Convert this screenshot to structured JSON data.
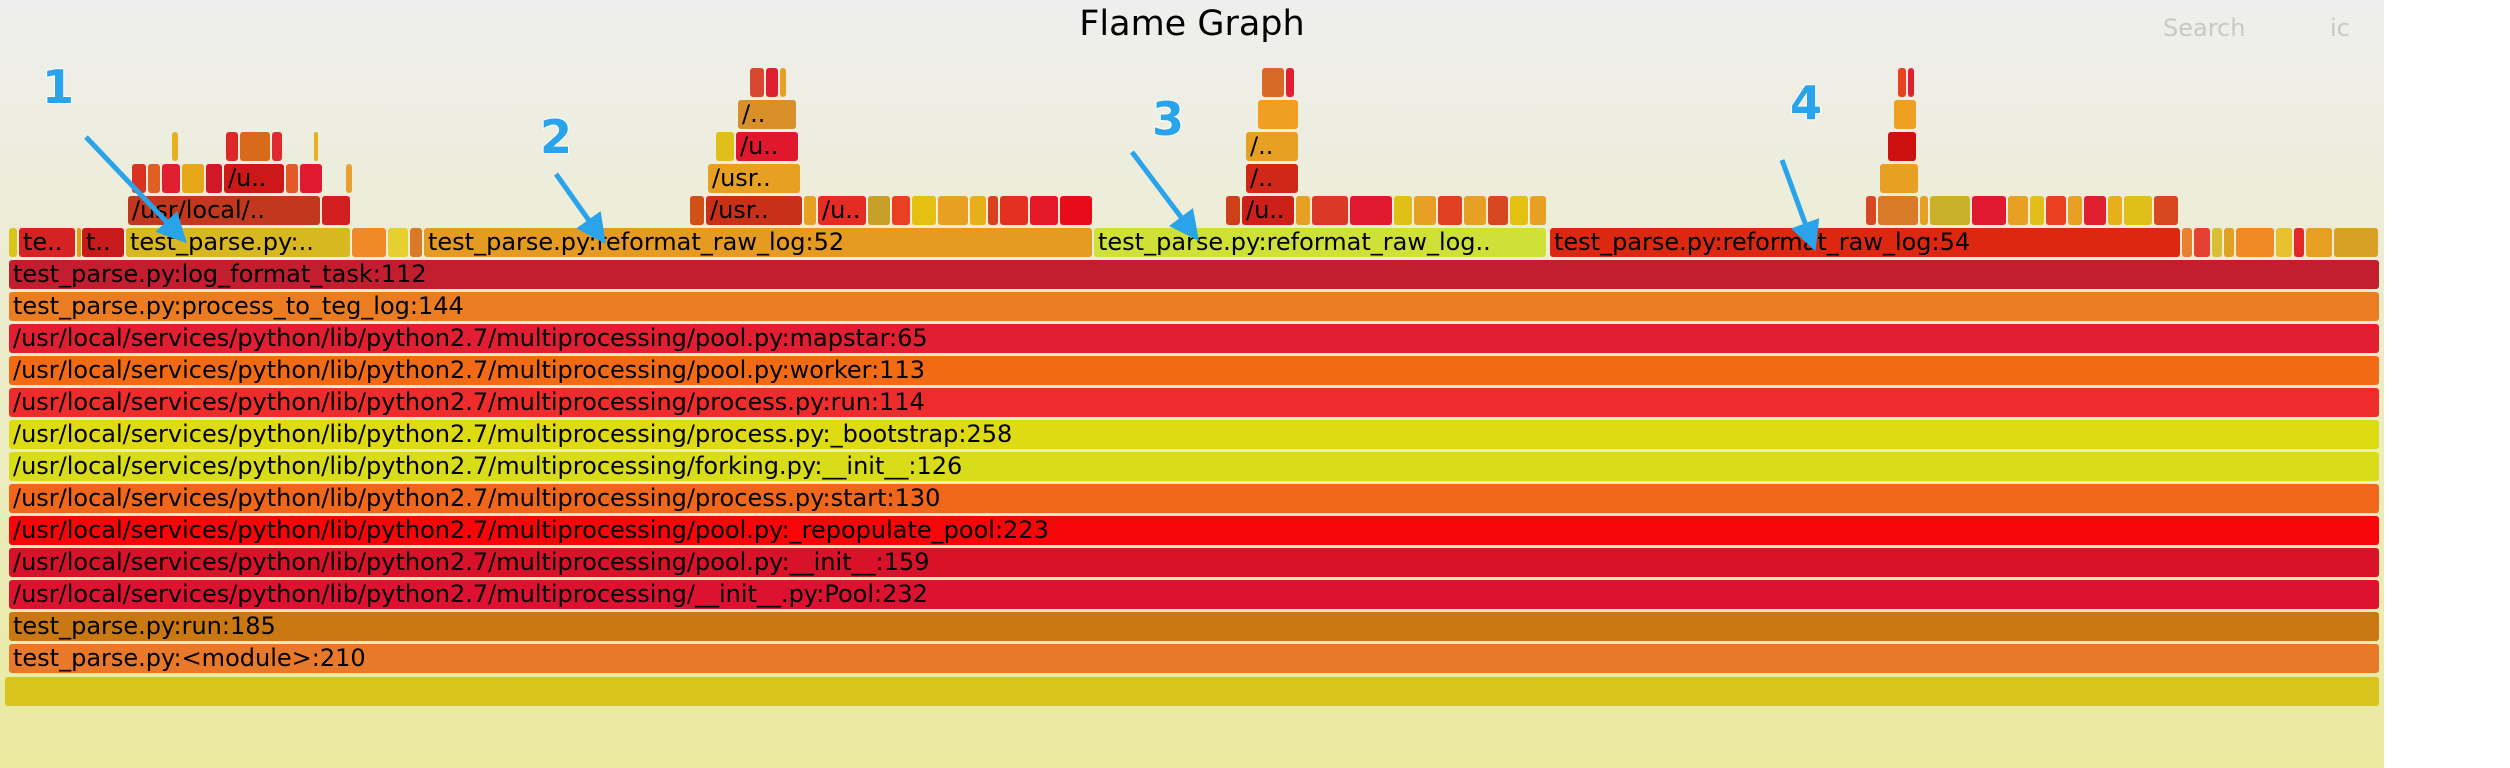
{
  "header": {
    "title": "Flame Graph",
    "search_label": "Search",
    "ic_label": "ic"
  },
  "colors": {
    "bg_top": "#eeeeee",
    "bg_bottom": "#eaeaa0",
    "arrow": "#29a3ea"
  },
  "annotations": [
    {
      "label": "1"
    },
    {
      "label": "2"
    },
    {
      "label": "3"
    },
    {
      "label": "4"
    }
  ],
  "stack_rows": [
    {
      "label": "test_parse.py:<module>:210"
    },
    {
      "label": "test_parse.py:run:185"
    },
    {
      "label": "/usr/local/services/python/lib/python2.7/multiprocessing/__init__.py:Pool:232"
    },
    {
      "label": "/usr/local/services/python/lib/python2.7/multiprocessing/pool.py:__init__:159"
    },
    {
      "label": "/usr/local/services/python/lib/python2.7/multiprocessing/pool.py:_repopulate_pool:223"
    },
    {
      "label": "/usr/local/services/python/lib/python2.7/multiprocessing/process.py:start:130"
    },
    {
      "label": "/usr/local/services/python/lib/python2.7/multiprocessing/forking.py:__init__:126"
    },
    {
      "label": "/usr/local/services/python/lib/python2.7/multiprocessing/process.py:_bootstrap:258"
    },
    {
      "label": "/usr/local/services/python/lib/python2.7/multiprocessing/process.py:run:114"
    },
    {
      "label": "/usr/local/services/python/lib/python2.7/multiprocessing/pool.py:worker:113"
    },
    {
      "label": "/usr/local/services/python/lib/python2.7/multiprocessing/pool.py:mapstar:65"
    },
    {
      "label": "test_parse.py:process_to_teg_log:144"
    },
    {
      "label": "test_parse.py:log_format_task:112"
    }
  ],
  "branch_frames": [
    {
      "label": "te.."
    },
    {
      "label": "t.."
    },
    {
      "label": "test_parse.py:.."
    },
    {
      "label": "test_parse.py:reformat_raw_log:52"
    },
    {
      "label": "test_parse.py:reformat_raw_log.."
    },
    {
      "label": "test_parse.py:reformat_raw_log:54"
    }
  ],
  "upper_frames": [
    {
      "label": "/usr/local/.."
    },
    {
      "label": "/u.."
    },
    {
      "label": "/usr.."
    },
    {
      "label": "/u.."
    },
    {
      "label": "/.."
    },
    {
      "label": "/usr.."
    },
    {
      "label": "/u.."
    },
    {
      "label": "/.."
    },
    {
      "label": "/.."
    },
    {
      "label": "/u.."
    }
  ]
}
